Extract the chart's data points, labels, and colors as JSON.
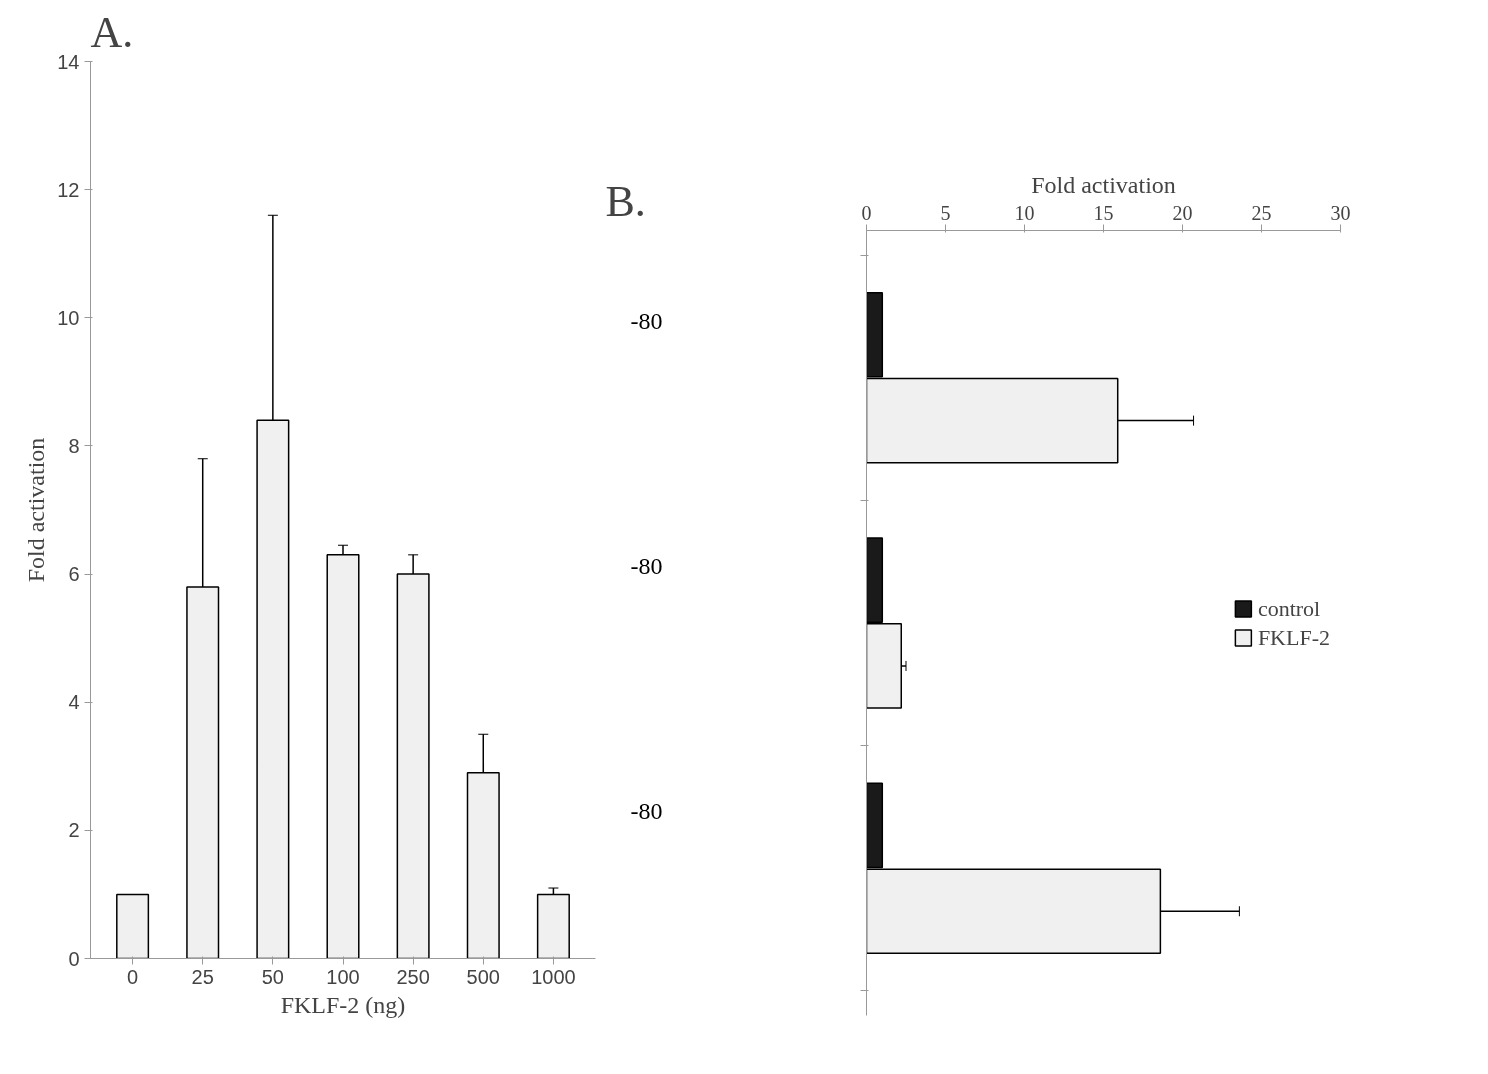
{
  "chart_data": [
    {
      "type": "bar",
      "title": "A.",
      "xlabel": "FKLF-2 (ng)",
      "ylabel": "Fold activation",
      "categories": [
        "0",
        "25",
        "50",
        "100",
        "250",
        "500",
        "1000"
      ],
      "values": [
        1.0,
        5.8,
        8.4,
        6.3,
        6.0,
        2.9,
        1.0
      ],
      "errors": [
        null,
        2.0,
        3.2,
        0.15,
        0.3,
        0.6,
        0.1
      ],
      "color": "#f0f0f0",
      "ylim": [
        0,
        14
      ],
      "yticks": [
        0,
        2,
        4,
        6,
        8,
        10,
        12,
        14
      ],
      "grid": false
    },
    {
      "type": "bar",
      "orientation": "horizontal",
      "title": "B.",
      "xlabel": "Fold activation",
      "categories": [
        null,
        null,
        null
      ],
      "series": [
        {
          "name": "control",
          "color": "#1a1a1a",
          "values": [
            1.0,
            1.0,
            1.0
          ]
        },
        {
          "name": "FKLF-2",
          "color": "#f0f0f0",
          "values": [
            15.9,
            2.2,
            18.6
          ],
          "errors": [
            4.8,
            0.3,
            5.0
          ]
        }
      ],
      "xlim": [
        0,
        30
      ],
      "xticks": [
        0,
        5,
        10,
        15,
        20,
        25,
        30
      ],
      "legend": "right",
      "grid": false,
      "annotations": [
        "-80",
        "-80",
        "-80"
      ]
    }
  ]
}
